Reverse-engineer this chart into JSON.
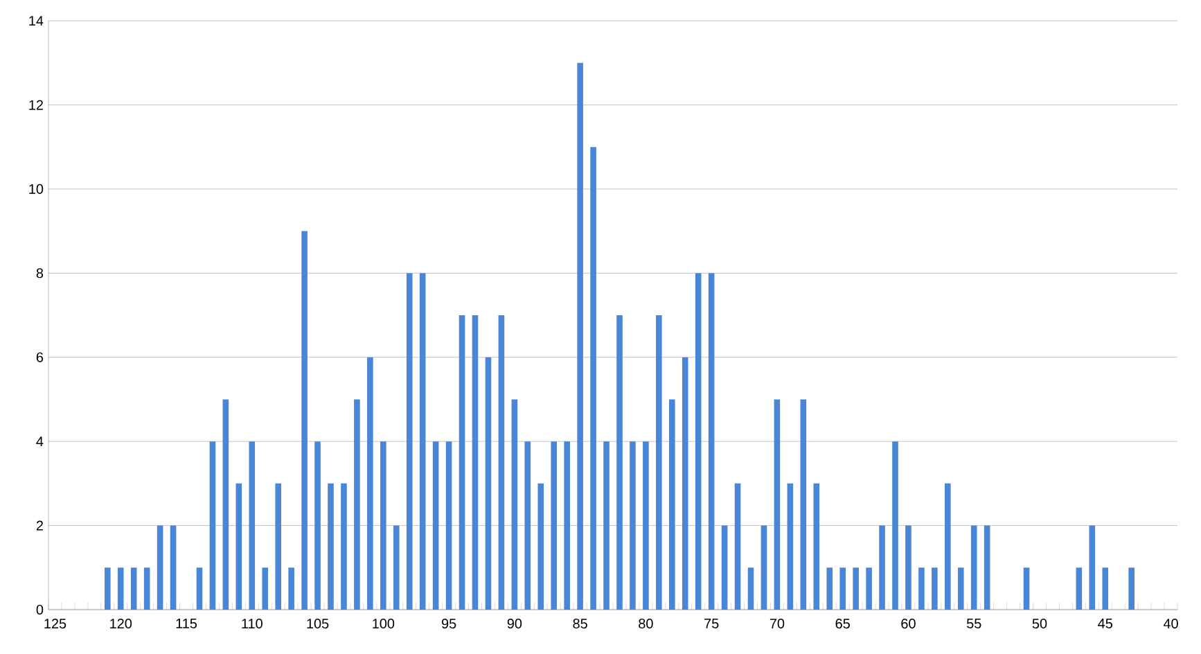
{
  "chart_data": {
    "type": "bar",
    "categories": [
      "125",
      null,
      null,
      null,
      null,
      "120",
      null,
      null,
      null,
      null,
      "115",
      null,
      null,
      null,
      null,
      "110",
      null,
      null,
      null,
      null,
      "105",
      null,
      null,
      null,
      null,
      "100",
      null,
      null,
      null,
      null,
      "95",
      null,
      null,
      null,
      null,
      "90",
      null,
      null,
      null,
      null,
      "85",
      null,
      null,
      null,
      null,
      "80",
      null,
      null,
      null,
      null,
      "75",
      null,
      null,
      null,
      null,
      "70",
      null,
      null,
      null,
      null,
      "65",
      null,
      null,
      null,
      null,
      "60",
      null,
      null,
      null,
      null,
      "55",
      null,
      null,
      null,
      null,
      "50",
      null,
      null,
      null,
      null,
      "45",
      null,
      null,
      null,
      null,
      "40"
    ],
    "values": [
      0,
      0,
      0,
      0,
      1,
      1,
      1,
      1,
      2,
      2,
      0,
      1,
      4,
      5,
      3,
      4,
      1,
      3,
      1,
      9,
      4,
      3,
      3,
      5,
      6,
      4,
      2,
      8,
      8,
      4,
      4,
      7,
      7,
      6,
      7,
      5,
      4,
      3,
      4,
      4,
      13,
      11,
      4,
      7,
      4,
      4,
      7,
      5,
      6,
      8,
      8,
      2,
      3,
      1,
      2,
      5,
      3,
      5,
      3,
      1,
      1,
      1,
      1,
      2,
      4,
      2,
      1,
      1,
      3,
      1,
      2,
      2,
      0,
      0,
      1,
      0,
      0,
      0,
      1,
      2,
      1,
      0,
      1,
      0,
      0,
      0
    ],
    "color": "#4a86d8",
    "ylim": [
      0,
      14
    ],
    "yticks": [
      0,
      2,
      4,
      6,
      8,
      10,
      12,
      14
    ],
    "grid": "y"
  }
}
